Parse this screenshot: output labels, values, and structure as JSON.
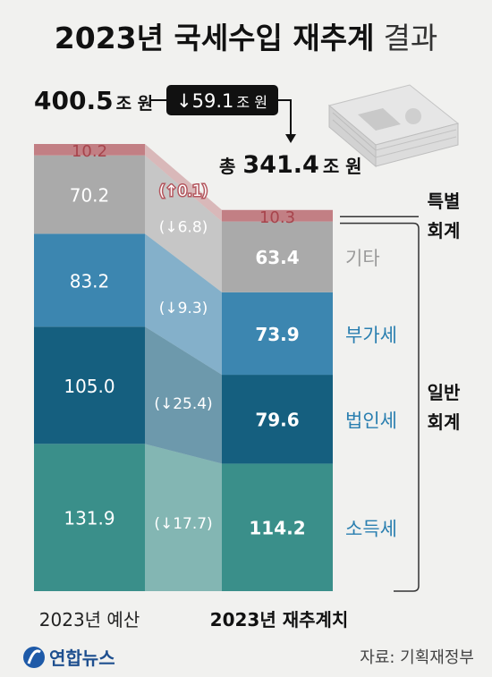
{
  "header": {
    "title_main": "2023년 국세수입 재추계",
    "title_suffix": "결과"
  },
  "annotations": {
    "left_total_value": "400.5",
    "left_total_unit": "조 원",
    "diff_value": "↓59.1",
    "diff_unit": "조 원",
    "right_total_prefix": "총",
    "right_total_value": "341.4",
    "right_total_unit": "조 원"
  },
  "groups": {
    "special": [
      "특별",
      "회계"
    ],
    "general": [
      "일반",
      "회계"
    ]
  },
  "chart_data": {
    "type": "bar",
    "stacked": true,
    "categories": [
      "2023년 예산",
      "2023년 재추계치"
    ],
    "series": [
      {
        "name": "소득세",
        "values": [
          131.9,
          114.2
        ],
        "change": "(↓17.7)",
        "color": "#3a8f8a"
      },
      {
        "name": "법인세",
        "values": [
          105.0,
          79.6
        ],
        "change": "(↓25.4)",
        "color": "#155f7f"
      },
      {
        "name": "부가세",
        "values": [
          83.2,
          73.9
        ],
        "change": "(↓9.3)",
        "color": "#3c86b0"
      },
      {
        "name": "기타",
        "values": [
          70.2,
          63.4
        ],
        "change": "(↓6.8)",
        "color": "#aaaaaa"
      },
      {
        "name": "",
        "values": [
          10.2,
          10.3
        ],
        "change": "(↑0.1)",
        "color": "#c27f84"
      }
    ],
    "value_labels": [
      [
        "131.9",
        "105.0",
        "83.2",
        "70.2",
        "10.2"
      ],
      [
        "114.2",
        "79.6",
        "73.9",
        "63.4",
        "10.3"
      ]
    ],
    "label_colors": {
      "general": "#2a7fb0",
      "other": "#9a9a9a"
    }
  },
  "footer": {
    "logo_text": "연합뉴스",
    "source": "자료: 기획재정부"
  }
}
